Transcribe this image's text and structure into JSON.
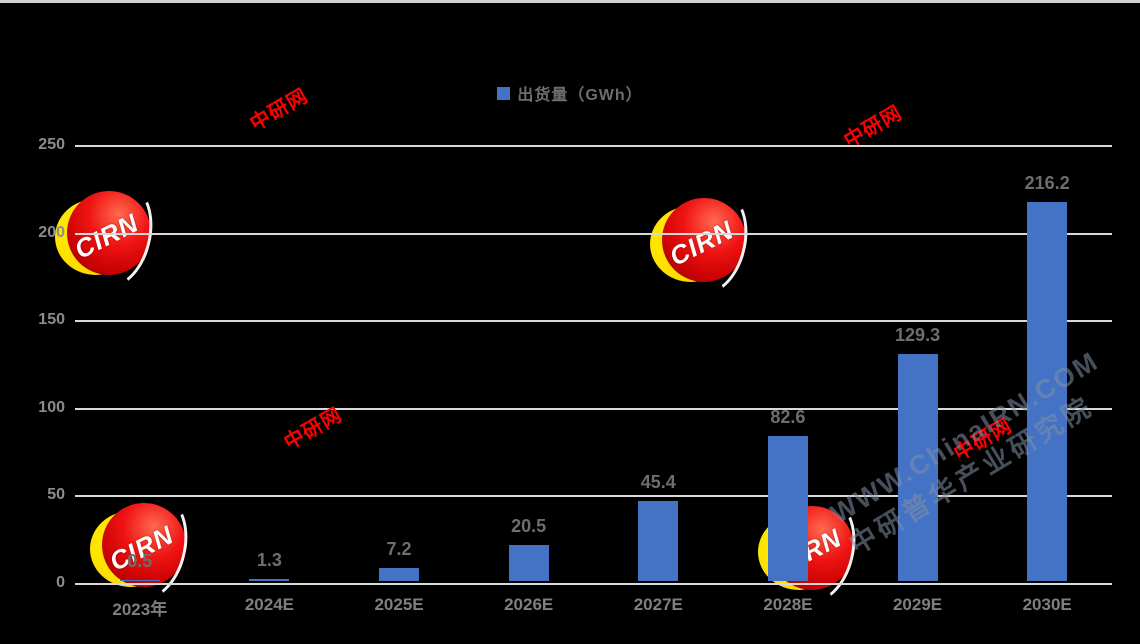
{
  "legend": {
    "label": "出货量（GWh）",
    "swatch_color": "#4472C4"
  },
  "chart_data": {
    "type": "bar",
    "title": "",
    "categories": [
      "2023年",
      "2024E",
      "2025E",
      "2026E",
      "2027E",
      "2028E",
      "2029E",
      "2030E"
    ],
    "values": [
      0.5,
      1.3,
      7.2,
      20.5,
      45.4,
      82.6,
      129.3,
      216.2
    ],
    "data_labels": [
      "0.5",
      "1.3",
      "7.2",
      "20.5",
      "45.4",
      "82.6",
      "129.3",
      "216.2"
    ],
    "series_name": "出货量（GWh）",
    "xlabel": "",
    "ylabel": "",
    "ylim": [
      0,
      250
    ],
    "yticks": [
      0,
      50,
      100,
      150,
      200,
      250
    ],
    "grid": true,
    "legend_position": "top-center",
    "bar_color": "#4472C4",
    "background_color": "#000000",
    "gridline_color": "#d9d9d9",
    "y_tick_color": "#8c8c8c",
    "x_label_color": "#7f7f7f",
    "data_label_color": "#6e6e6e"
  },
  "watermarks": {
    "logo_text": "CIRN",
    "stamp_text": "中研网",
    "stamp_color": "#FF0000",
    "diagonal_line1": "WWW.ChinaIRN.COM",
    "diagonal_line2": "中研普华产业研究院"
  }
}
